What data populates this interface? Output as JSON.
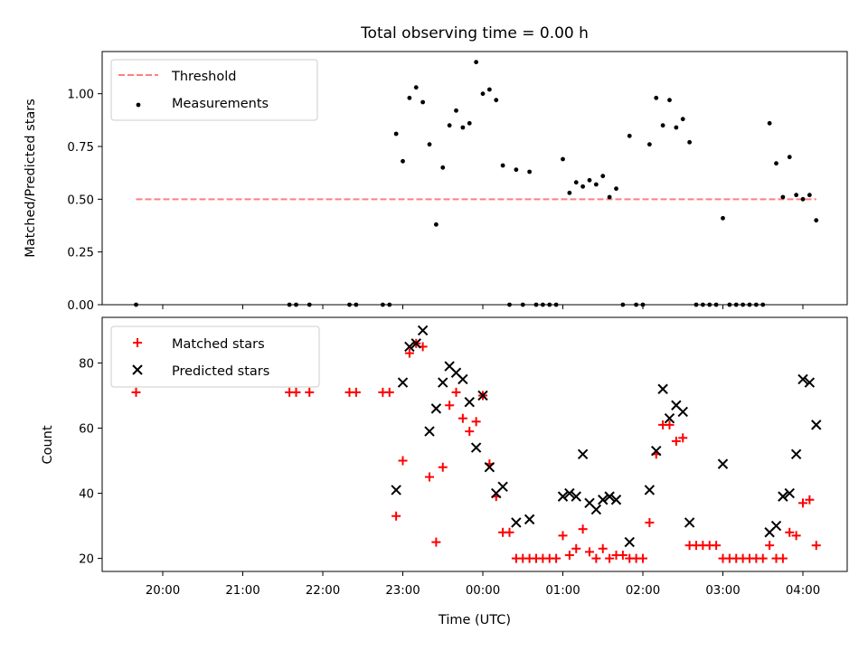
{
  "chart_data": [
    {
      "type": "scatter",
      "title": "Total observing time = 0.00 h",
      "xlabel": "",
      "ylabel": "Matched/Predicted stars",
      "ylim": [
        0,
        1.2
      ],
      "yticks": [
        "0.00",
        "0.25",
        "0.50",
        "0.75",
        "1.00"
      ],
      "threshold": {
        "name": "Threshold",
        "value": 0.5,
        "x_range": [
          "19:40",
          "04:10"
        ],
        "color": "#ff7f7f",
        "style": "dashed"
      },
      "legend": {
        "location": "upper left",
        "entries": [
          "Threshold",
          "Measurements"
        ]
      },
      "series": [
        {
          "name": "Measurements",
          "color": "#000000",
          "marker": "dot",
          "points": [
            [
              "19:40",
              0.0
            ],
            [
              "21:35",
              0.0
            ],
            [
              "21:40",
              0.0
            ],
            [
              "21:50",
              0.0
            ],
            [
              "22:20",
              0.0
            ],
            [
              "22:25",
              0.0
            ],
            [
              "22:45",
              0.0
            ],
            [
              "22:50",
              0.0
            ],
            [
              "22:55",
              0.81
            ],
            [
              "23:00",
              0.68
            ],
            [
              "23:05",
              0.98
            ],
            [
              "23:10",
              1.03
            ],
            [
              "23:15",
              0.96
            ],
            [
              "23:20",
              0.76
            ],
            [
              "23:25",
              0.38
            ],
            [
              "23:30",
              0.65
            ],
            [
              "23:35",
              0.85
            ],
            [
              "23:40",
              0.92
            ],
            [
              "23:45",
              0.84
            ],
            [
              "23:50",
              0.86
            ],
            [
              "23:55",
              1.15
            ],
            [
              "00:00",
              1.0
            ],
            [
              "00:05",
              1.02
            ],
            [
              "00:10",
              0.97
            ],
            [
              "00:15",
              0.66
            ],
            [
              "00:20",
              0.0
            ],
            [
              "00:25",
              0.64
            ],
            [
              "00:30",
              0.0
            ],
            [
              "00:35",
              0.63
            ],
            [
              "00:40",
              0.0
            ],
            [
              "00:45",
              0.0
            ],
            [
              "00:50",
              0.0
            ],
            [
              "00:55",
              0.0
            ],
            [
              "01:00",
              0.69
            ],
            [
              "01:05",
              0.53
            ],
            [
              "01:10",
              0.58
            ],
            [
              "01:15",
              0.56
            ],
            [
              "01:20",
              0.59
            ],
            [
              "01:25",
              0.57
            ],
            [
              "01:30",
              0.61
            ],
            [
              "01:35",
              0.51
            ],
            [
              "01:40",
              0.55
            ],
            [
              "01:45",
              0.0
            ],
            [
              "01:50",
              0.8
            ],
            [
              "01:55",
              0.0
            ],
            [
              "02:00",
              0.0
            ],
            [
              "02:05",
              0.76
            ],
            [
              "02:10",
              0.98
            ],
            [
              "02:15",
              0.85
            ],
            [
              "02:20",
              0.97
            ],
            [
              "02:25",
              0.84
            ],
            [
              "02:30",
              0.88
            ],
            [
              "02:35",
              0.77
            ],
            [
              "02:40",
              0.0
            ],
            [
              "02:45",
              0.0
            ],
            [
              "02:50",
              0.0
            ],
            [
              "02:55",
              0.0
            ],
            [
              "03:00",
              0.41
            ],
            [
              "03:05",
              0.0
            ],
            [
              "03:10",
              0.0
            ],
            [
              "03:15",
              0.0
            ],
            [
              "03:20",
              0.0
            ],
            [
              "03:25",
              0.0
            ],
            [
              "03:30",
              0.0
            ],
            [
              "03:35",
              0.86
            ],
            [
              "03:40",
              0.67
            ],
            [
              "03:45",
              0.51
            ],
            [
              "03:50",
              0.7
            ],
            [
              "03:55",
              0.52
            ],
            [
              "04:00",
              0.5
            ],
            [
              "04:05",
              0.52
            ],
            [
              "04:10",
              0.4
            ]
          ]
        }
      ]
    },
    {
      "type": "scatter",
      "xlabel": "Time (UTC)",
      "ylabel": "Count",
      "ylim": [
        16,
        94
      ],
      "yticks": [
        "20",
        "40",
        "60",
        "80"
      ],
      "xticks": [
        "20:00",
        "21:00",
        "22:00",
        "23:00",
        "00:00",
        "01:00",
        "02:00",
        "03:00",
        "04:00"
      ],
      "legend": {
        "location": "upper left",
        "entries": [
          "Matched stars",
          "Predicted stars"
        ]
      },
      "series": [
        {
          "name": "Matched stars",
          "color": "#ff0000",
          "marker": "plus",
          "points": [
            [
              "19:40",
              71
            ],
            [
              "21:35",
              71
            ],
            [
              "21:40",
              71
            ],
            [
              "21:50",
              71
            ],
            [
              "22:20",
              71
            ],
            [
              "22:25",
              71
            ],
            [
              "22:45",
              71
            ],
            [
              "22:50",
              71
            ],
            [
              "22:55",
              33
            ],
            [
              "23:00",
              50
            ],
            [
              "23:05",
              83
            ],
            [
              "23:10",
              86
            ],
            [
              "23:15",
              85
            ],
            [
              "23:20",
              45
            ],
            [
              "23:25",
              25
            ],
            [
              "23:30",
              48
            ],
            [
              "23:35",
              67
            ],
            [
              "23:40",
              71
            ],
            [
              "23:45",
              63
            ],
            [
              "23:50",
              59
            ],
            [
              "23:55",
              62
            ],
            [
              "00:00",
              70
            ],
            [
              "00:05",
              49
            ],
            [
              "00:10",
              39
            ],
            [
              "00:15",
              28
            ],
            [
              "00:20",
              28
            ],
            [
              "00:25",
              20
            ],
            [
              "00:30",
              20
            ],
            [
              "00:35",
              20
            ],
            [
              "00:40",
              20
            ],
            [
              "00:45",
              20
            ],
            [
              "00:50",
              20
            ],
            [
              "00:55",
              20
            ],
            [
              "01:00",
              27
            ],
            [
              "01:05",
              21
            ],
            [
              "01:10",
              23
            ],
            [
              "01:15",
              29
            ],
            [
              "01:20",
              22
            ],
            [
              "01:25",
              20
            ],
            [
              "01:30",
              23
            ],
            [
              "01:35",
              20
            ],
            [
              "01:40",
              21
            ],
            [
              "01:45",
              21
            ],
            [
              "01:50",
              20
            ],
            [
              "01:55",
              20
            ],
            [
              "02:00",
              20
            ],
            [
              "02:05",
              31
            ],
            [
              "02:10",
              52
            ],
            [
              "02:15",
              61
            ],
            [
              "02:20",
              61
            ],
            [
              "02:25",
              56
            ],
            [
              "02:30",
              57
            ],
            [
              "02:35",
              24
            ],
            [
              "02:40",
              24
            ],
            [
              "02:45",
              24
            ],
            [
              "02:50",
              24
            ],
            [
              "02:55",
              24
            ],
            [
              "03:00",
              20
            ],
            [
              "03:05",
              20
            ],
            [
              "03:10",
              20
            ],
            [
              "03:15",
              20
            ],
            [
              "03:20",
              20
            ],
            [
              "03:25",
              20
            ],
            [
              "03:30",
              20
            ],
            [
              "03:35",
              24
            ],
            [
              "03:40",
              20
            ],
            [
              "03:45",
              20
            ],
            [
              "03:50",
              28
            ],
            [
              "03:55",
              27
            ],
            [
              "04:00",
              37
            ],
            [
              "04:05",
              38
            ],
            [
              "04:10",
              24
            ]
          ]
        },
        {
          "name": "Predicted stars",
          "color": "#000000",
          "marker": "x",
          "points": [
            [
              "22:55",
              41
            ],
            [
              "23:00",
              74
            ],
            [
              "23:05",
              85
            ],
            [
              "23:10",
              86
            ],
            [
              "23:15",
              90
            ],
            [
              "23:20",
              59
            ],
            [
              "23:25",
              66
            ],
            [
              "23:30",
              74
            ],
            [
              "23:35",
              79
            ],
            [
              "23:40",
              77
            ],
            [
              "23:45",
              75
            ],
            [
              "23:50",
              68
            ],
            [
              "23:55",
              54
            ],
            [
              "00:00",
              70
            ],
            [
              "00:05",
              48
            ],
            [
              "00:10",
              40
            ],
            [
              "00:15",
              42
            ],
            [
              "00:25",
              31
            ],
            [
              "00:35",
              32
            ],
            [
              "01:00",
              39
            ],
            [
              "01:05",
              40
            ],
            [
              "01:10",
              39
            ],
            [
              "01:15",
              52
            ],
            [
              "01:20",
              37
            ],
            [
              "01:25",
              35
            ],
            [
              "01:30",
              38
            ],
            [
              "01:35",
              39
            ],
            [
              "01:40",
              38
            ],
            [
              "01:50",
              25
            ],
            [
              "02:05",
              41
            ],
            [
              "02:10",
              53
            ],
            [
              "02:15",
              72
            ],
            [
              "02:20",
              63
            ],
            [
              "02:25",
              67
            ],
            [
              "02:30",
              65
            ],
            [
              "02:35",
              31
            ],
            [
              "03:00",
              49
            ],
            [
              "03:35",
              28
            ],
            [
              "03:40",
              30
            ],
            [
              "03:45",
              39
            ],
            [
              "03:50",
              40
            ],
            [
              "03:55",
              52
            ],
            [
              "04:00",
              75
            ],
            [
              "04:05",
              74
            ],
            [
              "04:10",
              61
            ]
          ]
        }
      ]
    }
  ]
}
